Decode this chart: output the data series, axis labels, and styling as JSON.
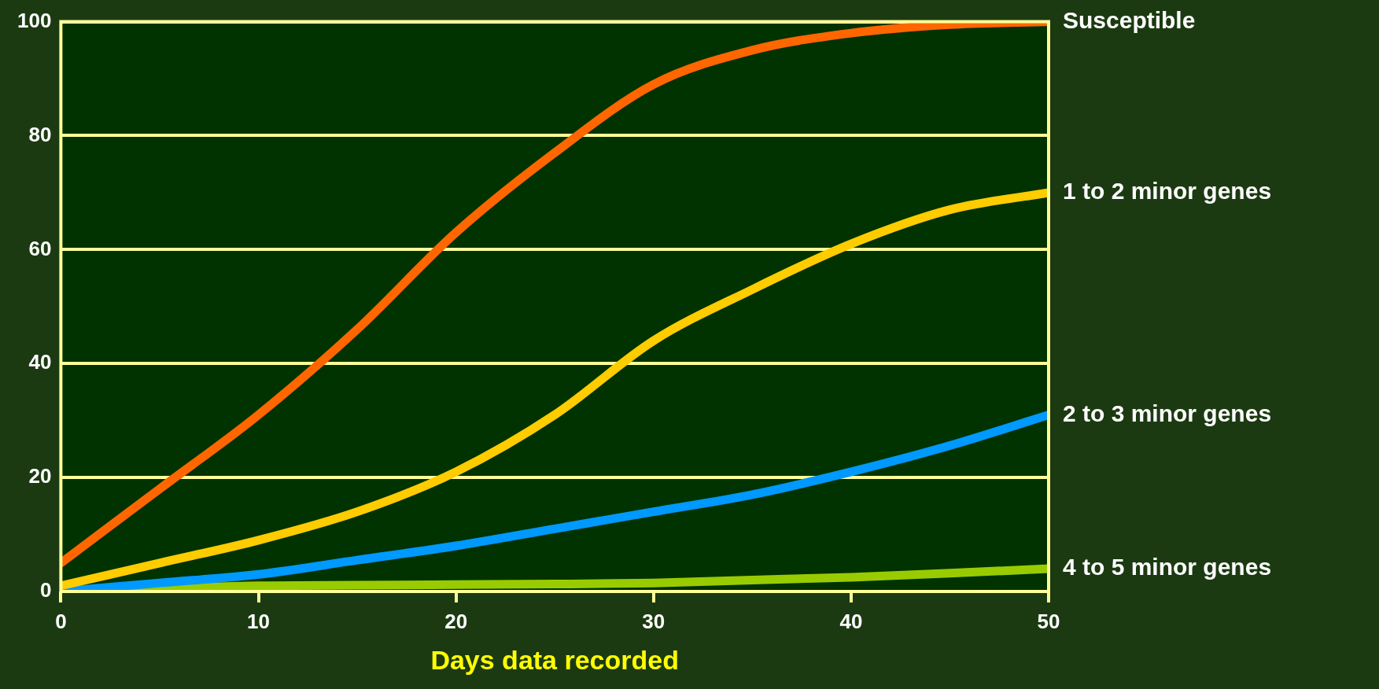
{
  "chart_data": {
    "type": "line",
    "xlabel": "Days data recorded",
    "x": [
      0,
      5,
      10,
      15,
      20,
      25,
      30,
      35,
      40,
      45,
      50
    ],
    "series": [
      {
        "name": "Susceptible",
        "color": "#ff6600",
        "values": [
          5,
          18,
          31,
          46,
          63,
          77,
          89,
          95,
          98,
          99.5,
          100
        ]
      },
      {
        "name": "1 to 2 minor genes",
        "color": "#ffcc00",
        "values": [
          1,
          5,
          9,
          14,
          21,
          31,
          44,
          53,
          61,
          67,
          70
        ]
      },
      {
        "name": "2 to 3 minor genes",
        "color": "#0099ff",
        "values": [
          0,
          1.5,
          3,
          5.5,
          8,
          11,
          14,
          17,
          21,
          25.6,
          31
        ]
      },
      {
        "name": "4 to 5 minor genes",
        "color": "#99cc00",
        "values": [
          0,
          0.5,
          1,
          1.1,
          1.2,
          1.3,
          1.5,
          2,
          2.5,
          3.2,
          4
        ]
      }
    ],
    "xlim": [
      0,
      50
    ],
    "xticks": [
      0,
      10,
      20,
      30,
      40,
      50
    ],
    "ylim": [
      0,
      100
    ],
    "yticks": [
      0,
      20,
      40,
      60,
      80,
      100
    ],
    "grid": "y",
    "legend": false,
    "marker": "none",
    "line_style": "solid"
  }
}
